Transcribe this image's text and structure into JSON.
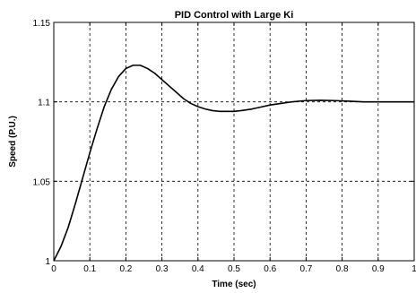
{
  "chart_data": {
    "type": "line",
    "title": "PID Control with Large Ki",
    "xlabel": "Time (sec)",
    "ylabel": "Speed (P.U.)",
    "xlim": [
      0,
      1
    ],
    "ylim": [
      1,
      1.15
    ],
    "grid": true,
    "x_ticks": [
      0,
      0.1,
      0.2,
      0.3,
      0.4,
      0.5,
      0.6,
      0.7,
      0.8,
      0.9,
      1
    ],
    "x_tick_labels": [
      "0",
      "0.1",
      "0.2",
      "0.3",
      "0.4",
      "0.5",
      "0.6",
      "0.7",
      "0.8",
      "0.9",
      "1"
    ],
    "y_ticks": [
      1,
      1.05,
      1.1,
      1.15
    ],
    "y_tick_labels": [
      "1",
      "1.05",
      "1.1",
      "1.15"
    ],
    "series": [
      {
        "color": "#000000",
        "x": [
          0,
          0.02,
          0.04,
          0.06,
          0.08,
          0.1,
          0.12,
          0.14,
          0.16,
          0.18,
          0.2,
          0.22,
          0.24,
          0.26,
          0.28,
          0.3,
          0.32,
          0.34,
          0.36,
          0.38,
          0.4,
          0.42,
          0.44,
          0.46,
          0.48,
          0.5,
          0.52,
          0.55,
          0.58,
          0.6,
          0.63,
          0.66,
          0.7,
          0.74,
          0.78,
          0.82,
          0.86,
          0.9,
          0.95,
          1.0
        ],
        "y": [
          1.0,
          1.009,
          1.021,
          1.036,
          1.052,
          1.068,
          1.083,
          1.097,
          1.108,
          1.116,
          1.121,
          1.123,
          1.123,
          1.121,
          1.118,
          1.114,
          1.11,
          1.106,
          1.102,
          1.099,
          1.097,
          1.0955,
          1.0945,
          1.094,
          1.094,
          1.094,
          1.0945,
          1.0955,
          1.097,
          1.098,
          1.099,
          1.1,
          1.1008,
          1.101,
          1.1008,
          1.1004,
          1.1,
          1.1,
          1.1,
          1.1
        ]
      }
    ]
  }
}
